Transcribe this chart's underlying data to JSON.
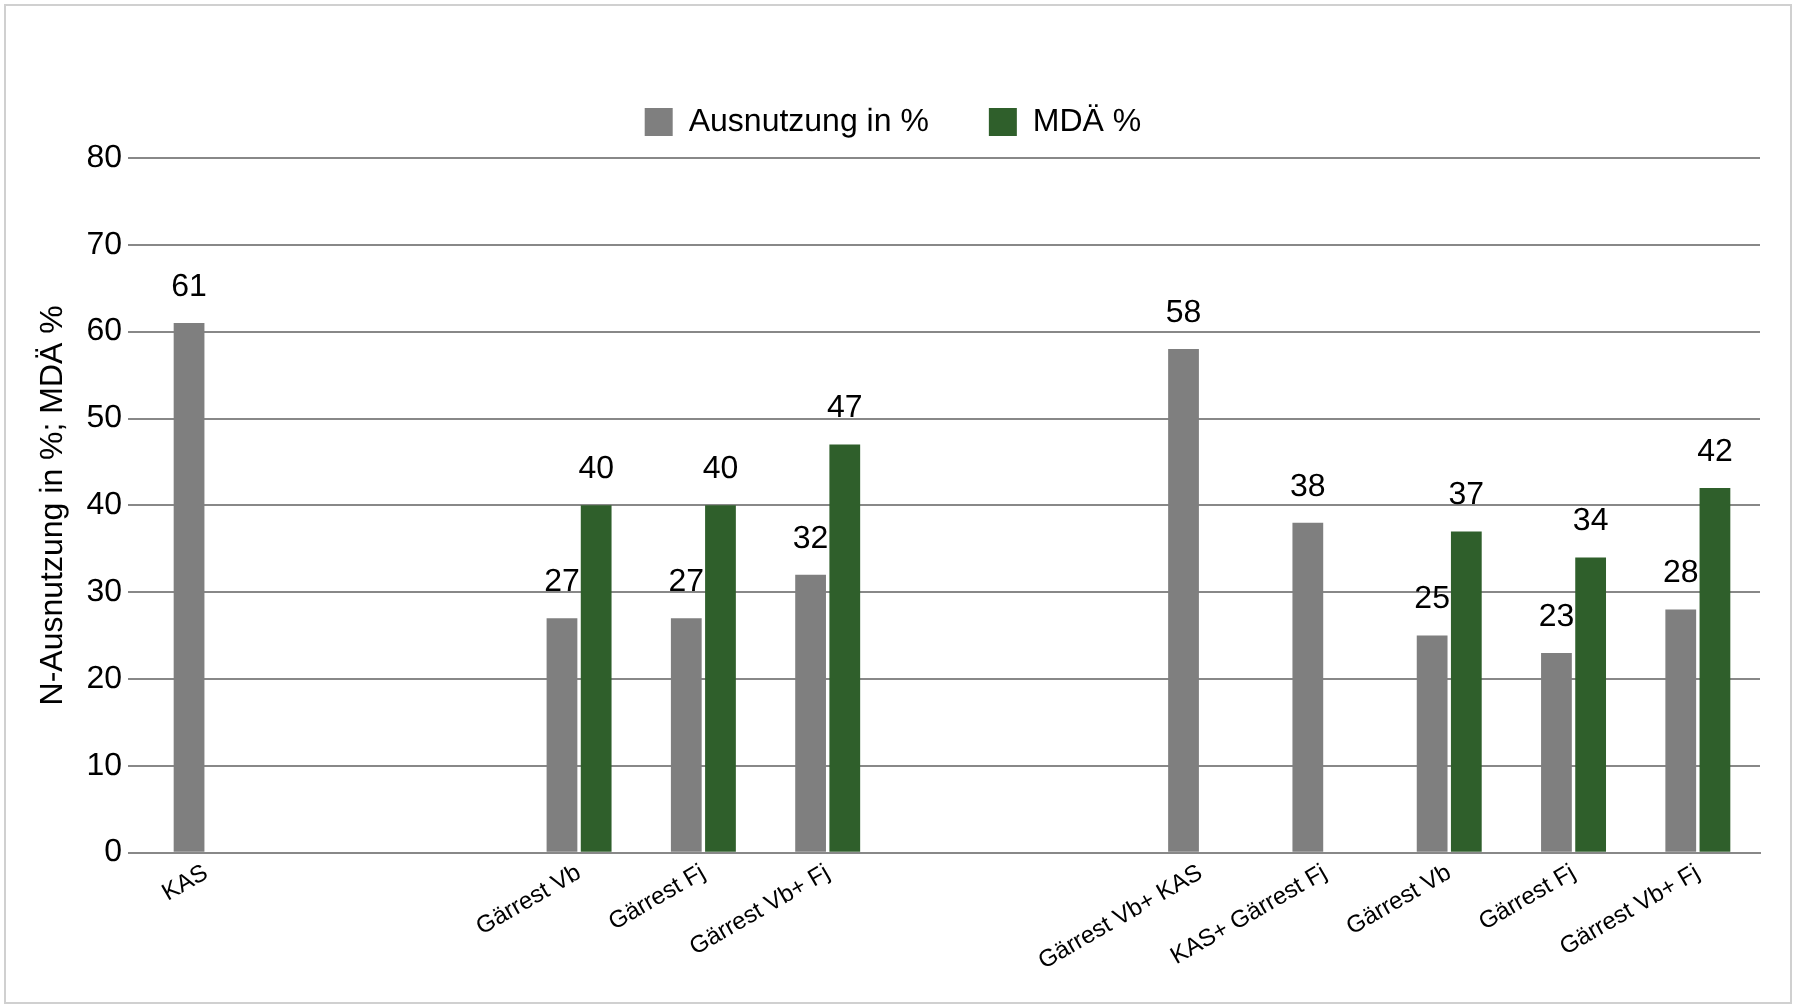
{
  "chart_data": {
    "type": "bar",
    "ylabel": "N-Ausnutzung in %; MDÄ %",
    "categories": [
      "KAS",
      null,
      null,
      "Gärrest Vb",
      "Gärrest Fj",
      "Gärrest Vb+ Fj",
      null,
      null,
      "Gärrest Vb+ KAS",
      "KAS+ Gärrest Fj",
      "Gärrest Vb",
      "Gärrest Fj",
      "Gärrest Vb+ Fj"
    ],
    "series": [
      {
        "name": "Ausnutzung in %",
        "color": "#7f7f7f",
        "values": [
          61,
          null,
          null,
          27,
          27,
          32,
          null,
          null,
          58,
          38,
          25,
          23,
          28
        ]
      },
      {
        "name": "MDÄ %",
        "color": "#2f5f2b",
        "values": [
          null,
          null,
          null,
          40,
          40,
          47,
          null,
          null,
          null,
          null,
          37,
          34,
          42
        ]
      }
    ],
    "ylim": [
      0,
      80
    ],
    "yticks": [
      0,
      10,
      20,
      30,
      40,
      50,
      60,
      70,
      80
    ],
    "grid": "y",
    "legend": "top",
    "data_labels": true
  }
}
